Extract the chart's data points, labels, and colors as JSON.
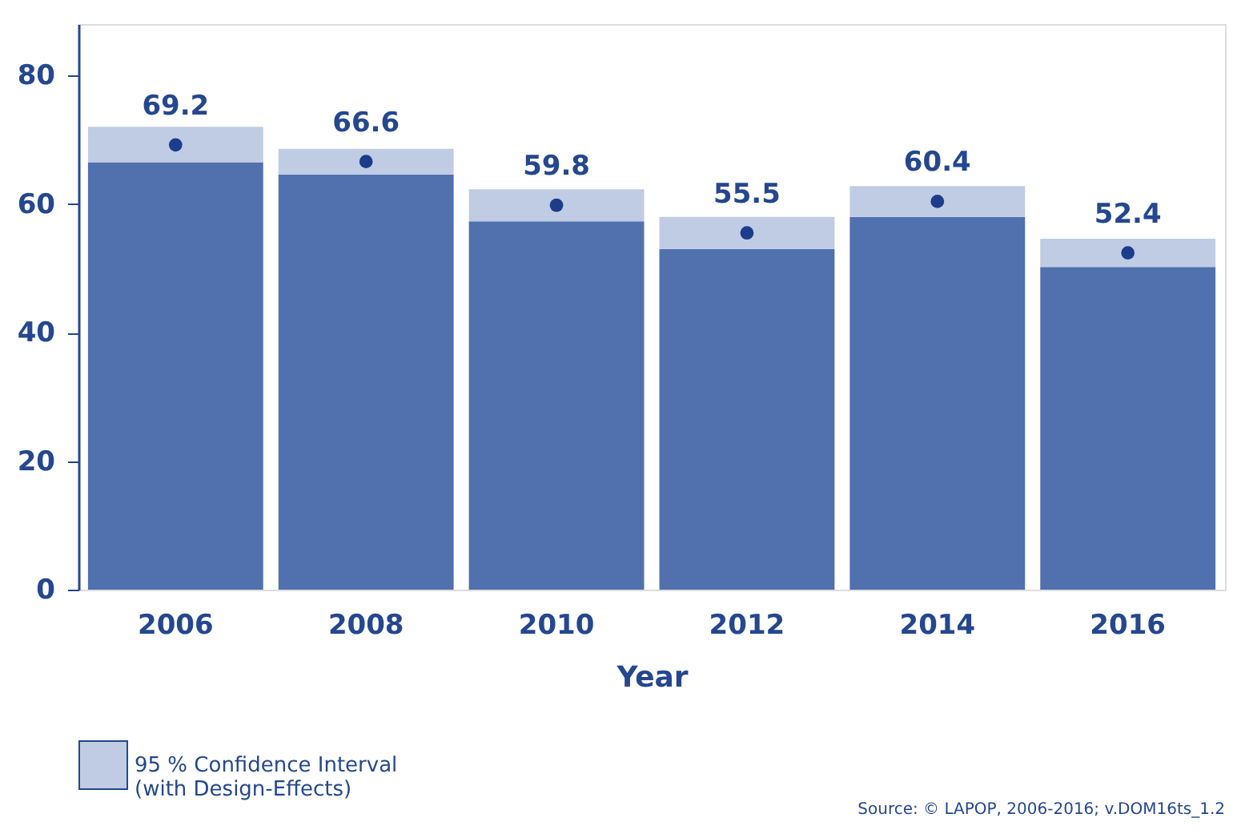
{
  "chart_data": {
    "type": "bar",
    "stacked": true,
    "xlabel": "Year",
    "categories": [
      "2006",
      "2008",
      "2010",
      "2012",
      "2014",
      "2016"
    ],
    "series": [
      {
        "color": "#5070ae",
        "values": [
          66.5,
          64.6,
          57.3,
          53.0,
          58.0,
          50.2
        ]
      },
      {
        "name": "95 % Confidence Interval\n(with Design-Effects)",
        "color": "#c0cce3",
        "values": [
          5.5,
          4.0,
          5.0,
          5.0,
          4.8,
          4.4
        ]
      },
      {
        "type": "scatter",
        "color": "#1c3c8c",
        "values": [
          69.2,
          66.6,
          59.8,
          55.5,
          60.4,
          52.4
        ],
        "value_labels": [
          "69.2",
          "66.6",
          "59.8",
          "55.5",
          "60.4",
          "52.4"
        ]
      }
    ],
    "ylim": [
      0,
      88
    ],
    "yticks": [
      0,
      20,
      40,
      60,
      80
    ],
    "grid": false,
    "legend": "bottom left",
    "marker": "circle",
    "annotations": [
      "Source: © LAPOP, 2006-2016; v.DOM16ts_1.2"
    ]
  }
}
